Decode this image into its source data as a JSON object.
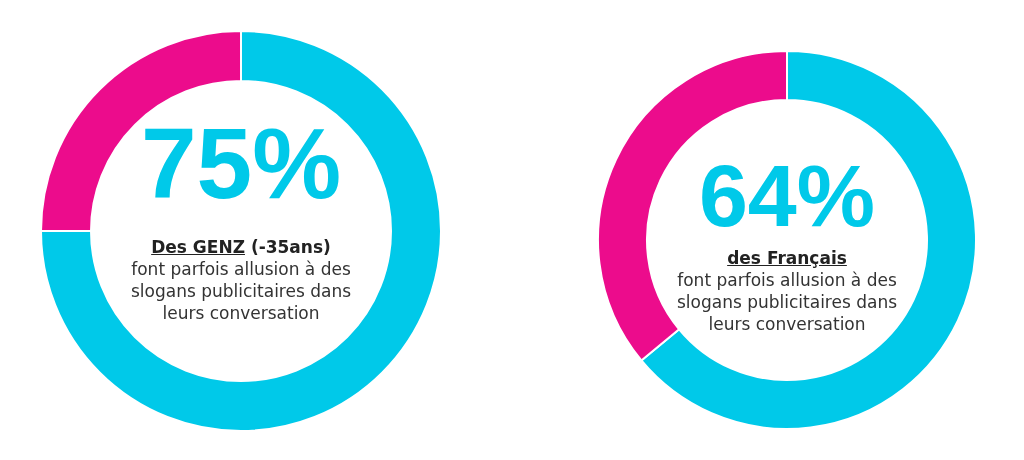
{
  "chart_data": [
    {
      "type": "donut",
      "categories": [
        null,
        null
      ],
      "values": [
        75,
        25
      ],
      "colors": [
        "#00c9e9",
        "#ec0c8c"
      ],
      "value_labels": [
        "75%",
        null
      ],
      "annotations": [
        "Des GENZ",
        "(-35ans)",
        "font parfois allusion à des slogans publicitaires dans leurs conversation"
      ]
    },
    {
      "type": "donut",
      "categories": [
        null,
        null
      ],
      "values": [
        64,
        36
      ],
      "colors": [
        "#00c9e9",
        "#ec0c8c"
      ],
      "value_labels": [
        "64%",
        null
      ],
      "annotations": [
        "des Français",
        "font parfois allusion à des slogans publicitaires dans leurs conversation"
      ]
    }
  ]
}
